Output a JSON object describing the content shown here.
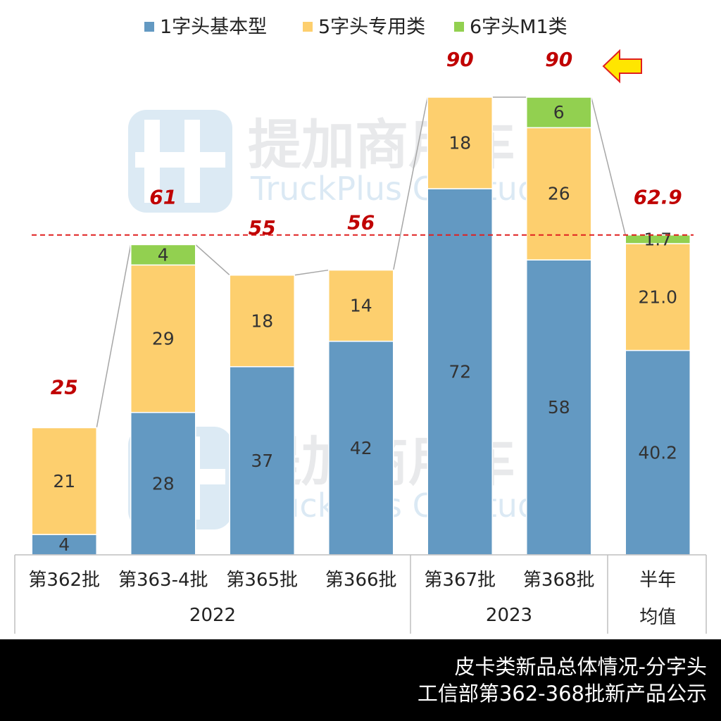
{
  "chart_data": {
    "type": "bar",
    "stacked": true,
    "title": "",
    "categories": [
      "第362批",
      "第363-4批",
      "第365批",
      "第366批",
      "第367批",
      "第368批",
      "半年\n均值"
    ],
    "groups": [
      {
        "label": "2022",
        "categories": [
          "第362批",
          "第363-4批",
          "第365批",
          "第366批"
        ]
      },
      {
        "label": "2023",
        "categories": [
          "第367批",
          "第368批"
        ]
      }
    ],
    "series": [
      {
        "name": "1字头基本型",
        "color": "#6399c2",
        "values": [
          4,
          28,
          37,
          42,
          72,
          58,
          40.2
        ],
        "labels": [
          "4",
          "28",
          "37",
          "42",
          "72",
          "58",
          "40.2"
        ]
      },
      {
        "name": "5字头专用类",
        "color": "#fdcf6e",
        "values": [
          21,
          29,
          18,
          14,
          18,
          26,
          21.0
        ],
        "labels": [
          "21",
          "29",
          "18",
          "14",
          "18",
          "26",
          "21.0"
        ]
      },
      {
        "name": "6字头M1类",
        "color": "#92d050",
        "values": [
          0,
          4,
          0,
          0,
          0,
          6,
          1.7
        ],
        "labels": [
          "",
          "4",
          "",
          "",
          "",
          "6",
          "1.7"
        ]
      }
    ],
    "totals": [
      25,
      61,
      55,
      56,
      90,
      90,
      62.9
    ],
    "total_labels": [
      "25",
      "61",
      "55",
      "56",
      "90",
      "90",
      "62.9"
    ],
    "reference_line": {
      "value": 62.9,
      "color": "#e02020",
      "style": "dashed"
    },
    "xlabel": "",
    "ylabel": "",
    "ylim": [
      0,
      90
    ],
    "legend": "top"
  },
  "watermark": {
    "cn": "提加商用车",
    "en": "TruckPlus CV studio"
  },
  "footer": {
    "line1": "皮卡类新品总体情况-分字头",
    "line2": "工信部第362-368批新产品公示"
  },
  "colors": {
    "arrow_fill": "#ffe600",
    "arrow_stroke": "#e02020",
    "footer_bg": "#000000"
  }
}
